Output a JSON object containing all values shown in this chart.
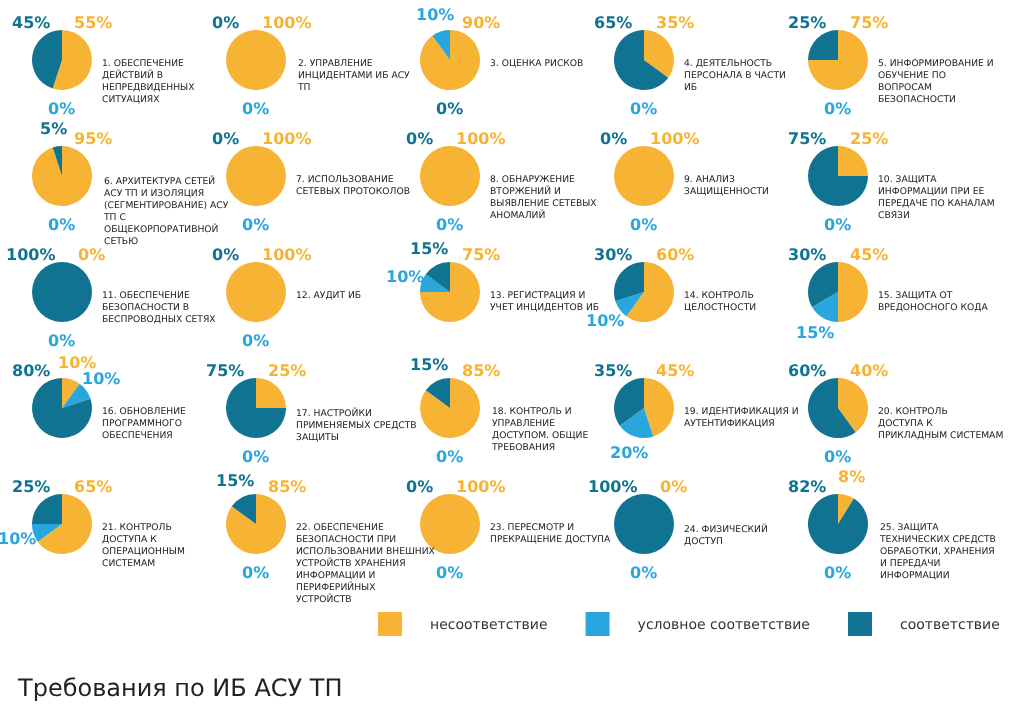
{
  "chart_data": [
    {
      "type": "pie",
      "title": "1. ОБЕСПЕЧЕНИЕ ДЕЙСТВИЙ В НЕПРЕДВИДЕННЫХ СИТУАЦИЯХ",
      "categories": [
        "несоответствие",
        "условное соответствие",
        "соответствие"
      ],
      "values": [
        55,
        0,
        45
      ],
      "colors": [
        "#f7b334",
        "#2aa6df",
        "#0f7391"
      ],
      "value_labels": [
        "55%",
        "0%",
        "45%"
      ],
      "legend": "bottom"
    },
    {
      "type": "pie",
      "title": "2. УПРАВЛЕНИЕ ИНЦИДЕНТАМИ ИБ АСУ ТП",
      "values": [
        100,
        0,
        0
      ],
      "colors": [
        "#f7b334",
        "#2aa6df",
        "#0f7391"
      ],
      "value_labels": [
        "100%",
        "0%",
        "0%"
      ]
    },
    {
      "type": "pie",
      "title": "3. ОЦЕНКА РИСКОВ",
      "values": [
        90,
        10,
        0
      ],
      "colors": [
        "#f7b334",
        "#2aa6df",
        "#0f7391"
      ],
      "value_labels": [
        "90%",
        "10%",
        "0%"
      ]
    },
    {
      "type": "pie",
      "title": "4. ДЕЯТЕЛЬНОСТЬ ПЕРСОНАЛА В ЧАСТИ ИБ",
      "values": [
        35,
        0,
        65
      ],
      "colors": [
        "#f7b334",
        "#2aa6df",
        "#0f7391"
      ],
      "value_labels": [
        "35%",
        "0%",
        "65%"
      ]
    },
    {
      "type": "pie",
      "title": "5. ИНФОРМИРОВАНИЕ И ОБУЧЕНИЕ ПО ВОПРОСАМ БЕЗОПАСНОСТИ",
      "values": [
        75,
        0,
        25
      ],
      "colors": [
        "#f7b334",
        "#2aa6df",
        "#0f7391"
      ],
      "value_labels": [
        "75%",
        "0%",
        "25%"
      ]
    },
    {
      "type": "pie",
      "title": "6. АРХИТЕКТУРА СЕТЕЙ АСУ ТП И ИЗОЛЯЦИЯ (СЕГМЕНТИРОВАНИЕ) АСУ ТП С ОБЩЕКОРПОРАТИВНОЙ СЕТЬЮ",
      "values": [
        95,
        0,
        5
      ],
      "colors": [
        "#f7b334",
        "#2aa6df",
        "#0f7391"
      ],
      "value_labels": [
        "95%",
        "0%",
        "5%"
      ]
    },
    {
      "type": "pie",
      "title": "7. ИСПОЛЬЗОВАНИЕ СЕТЕВЫХ ПРОТОКОЛОВ",
      "values": [
        100,
        0,
        0
      ],
      "colors": [
        "#f7b334",
        "#2aa6df",
        "#0f7391"
      ],
      "value_labels": [
        "100%",
        "0%",
        "0%"
      ]
    },
    {
      "type": "pie",
      "title": "8. ОБНАРУЖЕНИЕ ВТОРЖЕНИЙ И ВЫЯВЛЕНИЕ СЕТЕВЫХ АНОМАЛИЙ",
      "values": [
        100,
        0,
        0
      ],
      "colors": [
        "#f7b334",
        "#2aa6df",
        "#0f7391"
      ],
      "value_labels": [
        "100%",
        "0%",
        "0%"
      ]
    },
    {
      "type": "pie",
      "title": "9. АНАЛИЗ ЗАЩИЩЕННОСТИ",
      "values": [
        100,
        0,
        0
      ],
      "colors": [
        "#f7b334",
        "#2aa6df",
        "#0f7391"
      ],
      "value_labels": [
        "100%",
        "0%",
        "0%"
      ]
    },
    {
      "type": "pie",
      "title": "10. ЗАЩИТА ИНФОРМАЦИИ ПРИ ЕЕ ПЕРЕДАЧЕ ПО КАНАЛАМ СВЯЗИ",
      "values": [
        25,
        0,
        75
      ],
      "colors": [
        "#f7b334",
        "#2aa6df",
        "#0f7391"
      ],
      "value_labels": [
        "25%",
        "0%",
        "75%"
      ]
    },
    {
      "type": "pie",
      "title": "11. ОБЕСПЕЧЕНИЕ БЕЗОПАСНОСТИ В БЕСПРОВОДНЫХ СЕТЯХ",
      "values": [
        0,
        0,
        100
      ],
      "colors": [
        "#f7b334",
        "#2aa6df",
        "#0f7391"
      ],
      "value_labels": [
        "0%",
        "0%",
        "100%"
      ]
    },
    {
      "type": "pie",
      "title": "12. АУДИТ ИБ",
      "values": [
        100,
        0,
        0
      ],
      "colors": [
        "#f7b334",
        "#2aa6df",
        "#0f7391"
      ],
      "value_labels": [
        "100%",
        "0%",
        "0%"
      ]
    },
    {
      "type": "pie",
      "title": "13. РЕГИСТРАЦИЯ И УЧЕТ ИНЦИДЕНТОВ ИБ",
      "values": [
        75,
        10,
        15
      ],
      "colors": [
        "#f7b334",
        "#2aa6df",
        "#0f7391"
      ],
      "value_labels": [
        "75%",
        "10%",
        "15%"
      ]
    },
    {
      "type": "pie",
      "title": "14. КОНТРОЛЬ ЦЕЛОСТНОСТИ",
      "values": [
        60,
        10,
        30
      ],
      "colors": [
        "#f7b334",
        "#2aa6df",
        "#0f7391"
      ],
      "value_labels": [
        "60%",
        "10%",
        "30%"
      ]
    },
    {
      "type": "pie",
      "title": "15. ЗАЩИТА ОТ ВРЕДОНОСНОГО КОДА",
      "values": [
        45,
        15,
        30
      ],
      "colors": [
        "#f7b334",
        "#2aa6df",
        "#0f7391"
      ],
      "value_labels": [
        "45%",
        "15%",
        "30%"
      ]
    },
    {
      "type": "pie",
      "title": "16. ОБНОВЛЕНИЕ ПРОГРАММНОГО ОБЕСПЕЧЕНИЯ",
      "values": [
        10,
        10,
        80
      ],
      "colors": [
        "#f7b334",
        "#2aa6df",
        "#0f7391"
      ],
      "value_labels": [
        "10%",
        "10%",
        "80%"
      ]
    },
    {
      "type": "pie",
      "title": "17. НАСТРОЙКИ ПРИМЕНЯЕМЫХ СРЕДСТВ ЗАЩИТЫ",
      "values": [
        25,
        0,
        75
      ],
      "colors": [
        "#f7b334",
        "#2aa6df",
        "#0f7391"
      ],
      "value_labels": [
        "25%",
        "0%",
        "75%"
      ]
    },
    {
      "type": "pie",
      "title": "18. КОНТРОЛЬ И УПРАВЛЕНИЕ ДОСТУПОМ. ОБЩИЕ ТРЕБОВАНИЯ",
      "values": [
        85,
        0,
        15
      ],
      "colors": [
        "#f7b334",
        "#2aa6df",
        "#0f7391"
      ],
      "value_labels": [
        "85%",
        "0%",
        "15%"
      ]
    },
    {
      "type": "pie",
      "title": "19. ИДЕНТИФИКАЦИЯ И АУТЕНТИФИКАЦИЯ",
      "values": [
        45,
        20,
        35
      ],
      "colors": [
        "#f7b334",
        "#2aa6df",
        "#0f7391"
      ],
      "value_labels": [
        "45%",
        "20%",
        "35%"
      ]
    },
    {
      "type": "pie",
      "title": "20. КОНТРОЛЬ ДОСТУПА К ПРИКЛАДНЫМ СИСТЕМАМ",
      "values": [
        40,
        0,
        60
      ],
      "colors": [
        "#f7b334",
        "#2aa6df",
        "#0f7391"
      ],
      "value_labels": [
        "40%",
        "0%",
        "60%"
      ]
    },
    {
      "type": "pie",
      "title": "21. КОНТРОЛЬ ДОСТУПА К ОПЕРАЦИОННЫМ СИСТЕМАМ",
      "values": [
        65,
        10,
        25
      ],
      "colors": [
        "#f7b334",
        "#2aa6df",
        "#0f7391"
      ],
      "value_labels": [
        "65%",
        "10%",
        "25%"
      ]
    },
    {
      "type": "pie",
      "title": "22. ОБЕСПЕЧЕНИЕ БЕЗОПАСНОСТИ ПРИ ИСПОЛЬЗОВАНИИ ВНЕШНИХ УСТРОЙСТВ ХРАНЕНИЯ ИНФОРМАЦИИ И ПЕРИФЕРИЙНЫХ УСТРОЙСТВ",
      "values": [
        85,
        0,
        15
      ],
      "colors": [
        "#f7b334",
        "#2aa6df",
        "#0f7391"
      ],
      "value_labels": [
        "85%",
        "0%",
        "15%"
      ]
    },
    {
      "type": "pie",
      "title": "23. ПЕРЕСМОТР И ПРЕКРАЩЕНИЕ ДОСТУПА",
      "values": [
        100,
        0,
        0
      ],
      "colors": [
        "#f7b334",
        "#2aa6df",
        "#0f7391"
      ],
      "value_labels": [
        "100%",
        "0%",
        "0%"
      ]
    },
    {
      "type": "pie",
      "title": "24. ФИЗИЧЕСКИЙ ДОСТУП",
      "values": [
        0,
        0,
        100
      ],
      "colors": [
        "#f7b334",
        "#2aa6df",
        "#0f7391"
      ],
      "value_labels": [
        "0%",
        "0%",
        "100%"
      ]
    },
    {
      "type": "pie",
      "title": "25. ЗАЩИТА ТЕХНИЧЕСКИХ СРЕДСТВ ОБРАБОТКИ, ХРАНЕНИЯ И ПЕРЕДАЧИ ИНФОРМАЦИИ",
      "values": [
        8,
        0,
        82
      ],
      "colors": [
        "#f7b334",
        "#2aa6df",
        "#0f7391"
      ],
      "value_labels": [
        "8%",
        "0%",
        "82%"
      ],
      "annotations": [
        "Требования по ИБ АСУ ТП"
      ]
    }
  ]
}
